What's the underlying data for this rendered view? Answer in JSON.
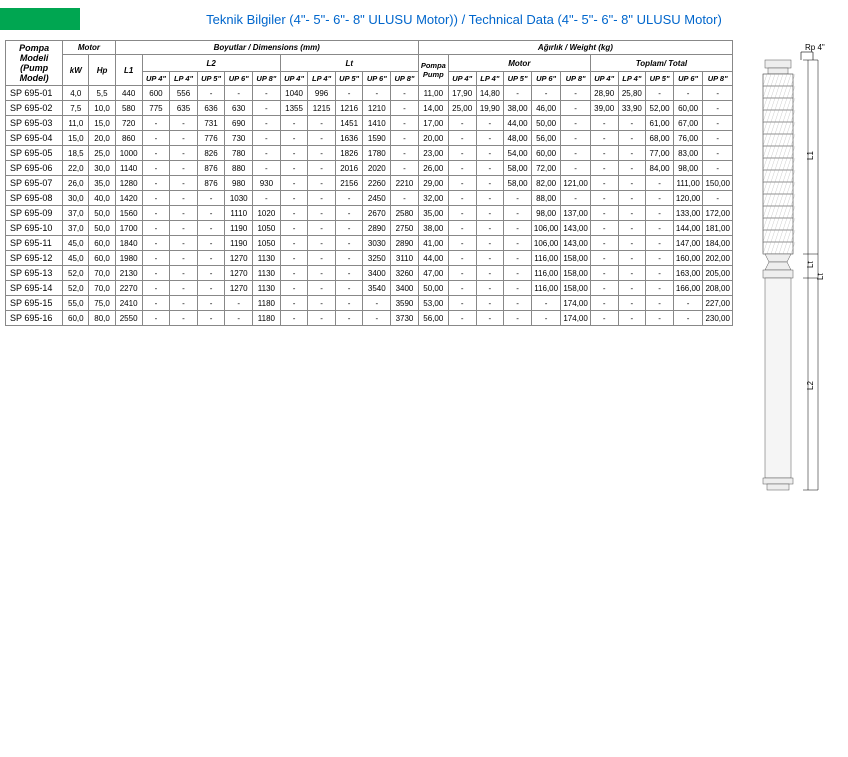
{
  "header": {
    "title": "Teknik Bilgiler (4\"- 5\"- 6\"- 8\" ULUSU Motor)) / Technical Data (4\"- 5\"- 6\"- 8\" ULUSU Motor)"
  },
  "table": {
    "top_groups": {
      "model": "Pompa Modeli\n(Pump Model)",
      "motor": "Motor",
      "dimensions": "Boyutlar / Dimensions (mm)",
      "weight": "Ağırlık / Weight (kg)"
    },
    "mid_groups": {
      "kw": "kW",
      "hp": "Hp",
      "l1": "L1",
      "l2": "L2",
      "lt": "Lt",
      "pump": "Pompa\nPump",
      "motor_w": "Motor",
      "total": "Toplam/ Total"
    },
    "sub_cols": [
      "UP 4\"",
      "LP 4\"",
      "UP 5\"",
      "UP 6\"",
      "UP 8\""
    ],
    "rows": [
      {
        "model": "SP 695-01",
        "kw": "4,0",
        "hp": "5,5",
        "l1": "440",
        "l2": [
          "600",
          "556",
          "-",
          "-",
          "-"
        ],
        "lt": [
          "1040",
          "996",
          "-",
          "-",
          "-"
        ],
        "pump": "11,00",
        "mw": [
          "17,90",
          "14,80",
          "-",
          "-",
          "-"
        ],
        "tw": [
          "28,90",
          "25,80",
          "-",
          "-",
          "-"
        ]
      },
      {
        "model": "SP 695-02",
        "kw": "7,5",
        "hp": "10,0",
        "l1": "580",
        "l2": [
          "775",
          "635",
          "636",
          "630",
          "-"
        ],
        "lt": [
          "1355",
          "1215",
          "1216",
          "1210",
          "-"
        ],
        "pump": "14,00",
        "mw": [
          "25,00",
          "19,90",
          "38,00",
          "46,00",
          "-"
        ],
        "tw": [
          "39,00",
          "33,90",
          "52,00",
          "60,00",
          "-"
        ]
      },
      {
        "model": "SP 695-03",
        "kw": "11,0",
        "hp": "15,0",
        "l1": "720",
        "l2": [
          "-",
          "-",
          "731",
          "690",
          "-"
        ],
        "lt": [
          "-",
          "-",
          "1451",
          "1410",
          "-"
        ],
        "pump": "17,00",
        "mw": [
          "-",
          "-",
          "44,00",
          "50,00",
          "-"
        ],
        "tw": [
          "-",
          "-",
          "61,00",
          "67,00",
          "-"
        ]
      },
      {
        "model": "SP 695-04",
        "kw": "15,0",
        "hp": "20,0",
        "l1": "860",
        "l2": [
          "-",
          "-",
          "776",
          "730",
          "-"
        ],
        "lt": [
          "-",
          "-",
          "1636",
          "1590",
          "-"
        ],
        "pump": "20,00",
        "mw": [
          "-",
          "-",
          "48,00",
          "56,00",
          "-"
        ],
        "tw": [
          "-",
          "-",
          "68,00",
          "76,00",
          "-"
        ]
      },
      {
        "model": "SP 695-05",
        "kw": "18,5",
        "hp": "25,0",
        "l1": "1000",
        "l2": [
          "-",
          "-",
          "826",
          "780",
          "-"
        ],
        "lt": [
          "-",
          "-",
          "1826",
          "1780",
          "-"
        ],
        "pump": "23,00",
        "mw": [
          "-",
          "-",
          "54,00",
          "60,00",
          "-"
        ],
        "tw": [
          "-",
          "-",
          "77,00",
          "83,00",
          "-"
        ]
      },
      {
        "model": "SP 695-06",
        "kw": "22,0",
        "hp": "30,0",
        "l1": "1140",
        "l2": [
          "-",
          "-",
          "876",
          "880",
          "-"
        ],
        "lt": [
          "-",
          "-",
          "2016",
          "2020",
          "-"
        ],
        "pump": "26,00",
        "mw": [
          "-",
          "-",
          "58,00",
          "72,00",
          "-"
        ],
        "tw": [
          "-",
          "-",
          "84,00",
          "98,00",
          "-"
        ]
      },
      {
        "model": "SP 695-07",
        "kw": "26,0",
        "hp": "35,0",
        "l1": "1280",
        "l2": [
          "-",
          "-",
          "876",
          "980",
          "930"
        ],
        "lt": [
          "-",
          "-",
          "2156",
          "2260",
          "2210"
        ],
        "pump": "29,00",
        "mw": [
          "-",
          "-",
          "58,00",
          "82,00",
          "121,00"
        ],
        "tw": [
          "-",
          "-",
          "-",
          "111,00",
          "150,00"
        ]
      },
      {
        "model": "SP 695-08",
        "kw": "30,0",
        "hp": "40,0",
        "l1": "1420",
        "l2": [
          "-",
          "-",
          "-",
          "1030",
          "-"
        ],
        "lt": [
          "-",
          "-",
          "-",
          "2450",
          "-"
        ],
        "pump": "32,00",
        "mw": [
          "-",
          "-",
          "-",
          "88,00",
          "-"
        ],
        "tw": [
          "-",
          "-",
          "-",
          "120,00",
          "-"
        ]
      },
      {
        "model": "SP 695-09",
        "kw": "37,0",
        "hp": "50,0",
        "l1": "1560",
        "l2": [
          "-",
          "-",
          "-",
          "1110",
          "1020"
        ],
        "lt": [
          "-",
          "-",
          "-",
          "2670",
          "2580"
        ],
        "pump": "35,00",
        "mw": [
          "-",
          "-",
          "-",
          "98,00",
          "137,00"
        ],
        "tw": [
          "-",
          "-",
          "-",
          "133,00",
          "172,00"
        ]
      },
      {
        "model": "SP 695-10",
        "kw": "37,0",
        "hp": "50,0",
        "l1": "1700",
        "l2": [
          "-",
          "-",
          "-",
          "1190",
          "1050"
        ],
        "lt": [
          "-",
          "-",
          "-",
          "2890",
          "2750"
        ],
        "pump": "38,00",
        "mw": [
          "-",
          "-",
          "-",
          "106,00",
          "143,00"
        ],
        "tw": [
          "-",
          "-",
          "-",
          "144,00",
          "181,00"
        ]
      },
      {
        "model": "SP 695-11",
        "kw": "45,0",
        "hp": "60,0",
        "l1": "1840",
        "l2": [
          "-",
          "-",
          "-",
          "1190",
          "1050"
        ],
        "lt": [
          "-",
          "-",
          "-",
          "3030",
          "2890"
        ],
        "pump": "41,00",
        "mw": [
          "-",
          "-",
          "-",
          "106,00",
          "143,00"
        ],
        "tw": [
          "-",
          "-",
          "-",
          "147,00",
          "184,00"
        ]
      },
      {
        "model": "SP 695-12",
        "kw": "45,0",
        "hp": "60,0",
        "l1": "1980",
        "l2": [
          "-",
          "-",
          "-",
          "1270",
          "1130"
        ],
        "lt": [
          "-",
          "-",
          "-",
          "3250",
          "3110"
        ],
        "pump": "44,00",
        "mw": [
          "-",
          "-",
          "-",
          "116,00",
          "158,00"
        ],
        "tw": [
          "-",
          "-",
          "-",
          "160,00",
          "202,00"
        ]
      },
      {
        "model": "SP 695-13",
        "kw": "52,0",
        "hp": "70,0",
        "l1": "2130",
        "l2": [
          "-",
          "-",
          "-",
          "1270",
          "1130"
        ],
        "lt": [
          "-",
          "-",
          "-",
          "3400",
          "3260"
        ],
        "pump": "47,00",
        "mw": [
          "-",
          "-",
          "-",
          "116,00",
          "158,00"
        ],
        "tw": [
          "-",
          "-",
          "-",
          "163,00",
          "205,00"
        ]
      },
      {
        "model": "SP 695-14",
        "kw": "52,0",
        "hp": "70,0",
        "l1": "2270",
        "l2": [
          "-",
          "-",
          "-",
          "1270",
          "1130"
        ],
        "lt": [
          "-",
          "-",
          "-",
          "3540",
          "3400"
        ],
        "pump": "50,00",
        "mw": [
          "-",
          "-",
          "-",
          "116,00",
          "158,00"
        ],
        "tw": [
          "-",
          "-",
          "-",
          "166,00",
          "208,00"
        ]
      },
      {
        "model": "SP 695-15",
        "kw": "55,0",
        "hp": "75,0",
        "l1": "2410",
        "l2": [
          "-",
          "-",
          "-",
          "-",
          "1180"
        ],
        "lt": [
          "-",
          "-",
          "-",
          "-",
          "3590"
        ],
        "pump": "53,00",
        "mw": [
          "-",
          "-",
          "-",
          "-",
          "174,00"
        ],
        "tw": [
          "-",
          "-",
          "-",
          "-",
          "227,00"
        ]
      },
      {
        "model": "SP 695-16",
        "kw": "60,0",
        "hp": "80,0",
        "l1": "2550",
        "l2": [
          "-",
          "-",
          "-",
          "-",
          "1180"
        ],
        "lt": [
          "-",
          "-",
          "-",
          "-",
          "3730"
        ],
        "pump": "56,00",
        "mw": [
          "-",
          "-",
          "-",
          "-",
          "174,00"
        ],
        "tw": [
          "-",
          "-",
          "-",
          "-",
          "230,00"
        ]
      }
    ]
  },
  "diagram": {
    "rp_label": "Rp 4\"",
    "l1_label": "L1",
    "lt_label": "Lt",
    "l2_label": "L2",
    "pump_stroke": "#555555",
    "pump_fill": "#eeeeee",
    "hatch_stroke": "#888888"
  }
}
